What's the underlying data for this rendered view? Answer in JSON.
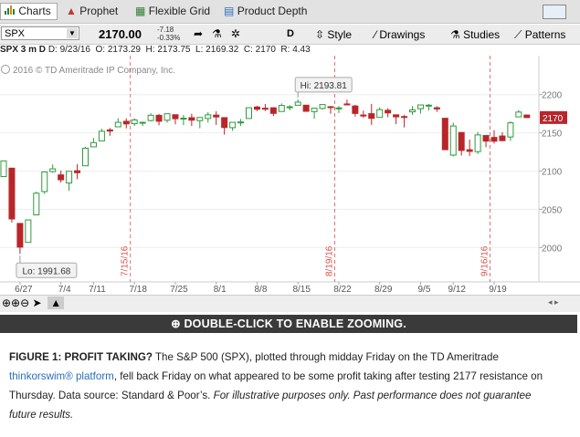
{
  "tabs": [
    "Charts",
    "Prophet",
    "Flexible Grid",
    "Product Depth"
  ],
  "toolbar": {
    "symbol": "SPX",
    "last": "2170.00",
    "change": "-7.18",
    "change_pct": "-0.33%",
    "aggregation": "D",
    "buttons": [
      "Style",
      "Drawings",
      "Studies",
      "Patterns"
    ]
  },
  "info": {
    "symbol_period": "SPX 3 m D",
    "quote": "D: 9/23/16  O: 2173.29  H: 2173.75  L: 2169.32  C: 2170  R: 4.43"
  },
  "copyright": "2016 © TD Ameritrade IP Company, Inc.",
  "chart_data": {
    "type": "candlestick",
    "categories": [
      null,
      null,
      "6/27",
      null,
      null,
      null,
      null,
      "7/4",
      null,
      null,
      null,
      "7/11",
      null,
      null,
      null,
      null,
      "7/18",
      null,
      null,
      null,
      null,
      "7/25",
      null,
      null,
      null,
      null,
      "8/1",
      null,
      null,
      null,
      null,
      "8/8",
      null,
      null,
      null,
      null,
      "8/15",
      null,
      null,
      null,
      null,
      "8/22",
      null,
      null,
      null,
      null,
      "8/29",
      null,
      null,
      null,
      null,
      "9/5",
      null,
      null,
      null,
      "9/12",
      null,
      null,
      null,
      null,
      "9/19",
      null,
      null,
      null,
      null
    ],
    "open": [
      2092.8,
      2103.8,
      2031.5,
      2006.7,
      2042.7,
      2073.2,
      2099.3,
      2095,
      2084.4,
      2100.4,
      2106.9,
      2131.7,
      2139.5,
      2153.8,
      2157.9,
      2165.1,
      2162,
      2163.8,
      2166.1,
      2172.9,
      2166.5,
      2173.7,
      2168.97,
      2169.8,
      2166,
      2168.8,
      2173.2,
      2169.9,
      2156.8,
      2163.5,
      2168.8,
      2183.8,
      2182.2,
      2182.8,
      2177.97,
      2183.7,
      2186.1,
      2186.2,
      2177.8,
      2181.9,
      2184.2,
      2181.6,
      2187.8,
      2185.1,
      2173.3,
      2175.1,
      2170.2,
      2179.5,
      2173.6,
      2171.3,
      2177.5,
      2181.6,
      2185.2,
      2182.8,
      2169.1,
      2120.9,
      2150.5,
      2127.9,
      2125.4,
      2146.5,
      2143.99,
      2145.9,
      2144.6,
      2170.9,
      2173.29
    ],
    "high": [
      2113.3,
      2103.8,
      2031.5,
      2036.1,
      2073.1,
      2098.9,
      2108.7,
      2100.7,
      2100,
      2109,
      2131.7,
      2143.2,
      2155.4,
      2156.5,
      2169.1,
      2169,
      2168.99,
      2164.6,
      2175.6,
      2174.6,
      2175.1,
      2173.7,
      2173.5,
      2174.98,
      2170.2,
      2177.1,
      2178.3,
      2170.2,
      2163.8,
      2168.2,
      2182.9,
      2185.4,
      2187.7,
      2183.4,
      2188.5,
      2186.3,
      2193.81,
      2186.2,
      2183.1,
      2187,
      2185,
      2185.2,
      2193.4,
      2186.7,
      2179,
      2187.9,
      2183.5,
      2182.3,
      2173.6,
      2173.6,
      2184.9,
      2186.6,
      2187.9,
      2184.9,
      2169.1,
      2163.3,
      2150.5,
      2141.3,
      2151.3,
      2146.5,
      2153.6,
      2150.8,
      2165.1,
      2179.99,
      2173.75
    ],
    "low": [
      2092.8,
      2032.6,
      1991.68,
      2006.7,
      2042.7,
      2070,
      2097.9,
      2085,
      2074,
      2089.4,
      2106.9,
      2131.7,
      2139.5,
      2146.2,
      2157.9,
      2155.8,
      2159.1,
      2159,
      2164.9,
      2159.8,
      2163.2,
      2161.2,
      2160.2,
      2159,
      2156,
      2163.5,
      2160.3,
      2147.6,
      2152.7,
      2159,
      2168.8,
      2178.5,
      2178.6,
      2172,
      2177.97,
      2179.4,
      2186.1,
      2178.1,
      2168.5,
      2180.5,
      2175.1,
      2175.96,
      2186.8,
      2171.3,
      2169.7,
      2160.4,
      2170.2,
      2170.4,
      2161.35,
      2157.1,
      2173.6,
      2175.1,
      2179.1,
      2177.5,
      2127.8,
      2119.1,
      2120.3,
      2119.9,
      2122.4,
      2131.2,
      2135.9,
      2139.2,
      2139.6,
      2170.9,
      2169.32
    ],
    "close": [
      2113.3,
      2037.4,
      2000.5,
      2036.1,
      2071,
      2098.9,
      2102.9,
      2088.6,
      2099.7,
      2097.9,
      2129.9,
      2137.2,
      2152.1,
      2152.4,
      2163.8,
      2161.7,
      2166.9,
      2163.8,
      2173,
      2165.2,
      2175,
      2168.5,
      2169.2,
      2166.6,
      2170.1,
      2173.6,
      2170.8,
      2157,
      2163.8,
      2164.25,
      2182.9,
      2180.9,
      2181.7,
      2175.5,
      2185.8,
      2184.05,
      2190.2,
      2178.2,
      2182.2,
      2187,
      2183.9,
      2182.6,
      2186.9,
      2175.4,
      2172.5,
      2169,
      2180.4,
      2176.1,
      2170.95,
      2170.9,
      2179.98,
      2186.5,
      2186.2,
      2181.3,
      2128,
      2159,
      2127,
      2125.8,
      2147.3,
      2139.2,
      2139.1,
      2139.8,
      2163.1,
      2177.2,
      2170
    ],
    "up_color": "#2f9a3c",
    "down_color": "#b8262a",
    "expiration_color": "#d9534f",
    "ylim": [
      1955,
      2251
    ],
    "yticks": [
      2000,
      2050,
      2100,
      2150,
      2200
    ],
    "grid": true,
    "hi_label": "Hi: 2193.81",
    "lo_label": "Lo: 1991.68",
    "expirations": [
      "7/15/16",
      "8/19/16",
      "9/16/16"
    ]
  },
  "zoom_hint": "DOUBLE-CLICK TO ENABLE ZOOMING.",
  "caption": {
    "label": "FIGURE 1: PROFIT TAKING?",
    "text_1": "The S&P 500 (SPX), plotted through midday Friday on the TD Ameritrade",
    "link": "thinkorswim® platform",
    "text_2": ", fell back Friday on what appeared to be some profit taking after testing 2177 resistance on Thursday. Data source: Standard & Poor’s.",
    "note": "For illustrative purposes only. Past performance does not guarantee future results."
  }
}
